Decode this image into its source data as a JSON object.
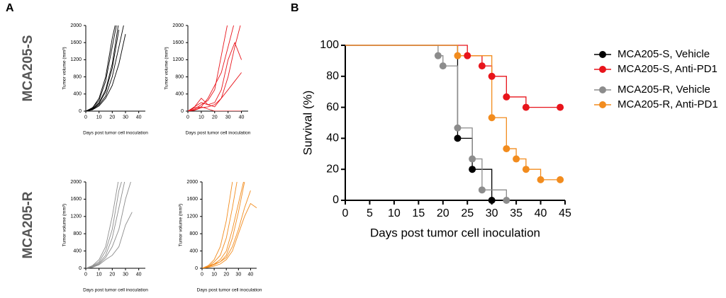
{
  "chart_data": [
    {
      "type": "line",
      "panel": "A",
      "group_label": "MCA205-S",
      "color": "#000000",
      "y_label": "Tumor volume (mm³)",
      "x_label": "Days post tumor cell inoculation",
      "x": [
        0,
        5,
        10,
        15,
        20,
        25,
        30,
        35,
        40,
        45
      ],
      "series": [
        {
          "values": [
            0,
            60,
            200,
            500,
            1100,
            2100,
            null,
            null,
            null,
            null
          ]
        },
        {
          "values": [
            0,
            40,
            150,
            350,
            800,
            1500,
            2200,
            null,
            null,
            null
          ]
        },
        {
          "values": [
            0,
            80,
            250,
            700,
            1500,
            2300,
            null,
            null,
            null,
            null
          ]
        },
        {
          "values": [
            0,
            30,
            120,
            300,
            600,
            1100,
            1800,
            null,
            null,
            null
          ]
        },
        {
          "values": [
            0,
            50,
            180,
            450,
            1000,
            1900,
            null,
            null,
            null,
            null
          ]
        },
        {
          "values": [
            0,
            70,
            300,
            800,
            1700,
            2400,
            null,
            null,
            null,
            null
          ]
        }
      ],
      "xlim": [
        0,
        45
      ],
      "xticks": [
        0,
        10,
        20,
        30,
        40
      ],
      "ylim": [
        0,
        2000
      ],
      "yticks": [
        0,
        400,
        800,
        1200,
        1600,
        2000
      ]
    },
    {
      "type": "line",
      "color": "#e8141b",
      "y_label": "Tumor volume (mm³)",
      "x_label": "Days post tumor cell inoculation",
      "x": [
        0,
        5,
        10,
        15,
        20,
        25,
        30,
        35,
        40,
        45
      ],
      "series": [
        {
          "values": [
            0,
            100,
            200,
            150,
            100,
            300,
            800,
            1500,
            2100,
            null
          ]
        },
        {
          "values": [
            0,
            50,
            150,
            250,
            500,
            1300,
            2100,
            null,
            null,
            null
          ]
        },
        {
          "values": [
            0,
            80,
            100,
            50,
            0,
            0,
            0,
            0,
            0,
            null
          ]
        },
        {
          "values": [
            0,
            100,
            300,
            150,
            200,
            500,
            1200,
            1600,
            1200,
            null
          ]
        },
        {
          "values": [
            0,
            30,
            100,
            300,
            600,
            900,
            1500,
            2100,
            null,
            null
          ]
        },
        {
          "values": [
            0,
            20,
            80,
            100,
            150,
            300,
            500,
            700,
            900,
            null
          ]
        }
      ],
      "xlim": [
        0,
        45
      ],
      "xticks": [
        0,
        10,
        20,
        30,
        40
      ],
      "ylim": [
        0,
        2000
      ],
      "yticks": [
        0,
        400,
        800,
        1200,
        1600,
        2000
      ]
    },
    {
      "type": "line",
      "group_label": "MCA205-R",
      "color": "#8c8c8c",
      "y_label": "Tumor volume (mm³)",
      "x_label": "Days post tumor cell inoculation",
      "x": [
        0,
        5,
        10,
        15,
        20,
        25,
        30,
        35,
        40,
        45
      ],
      "series": [
        {
          "values": [
            0,
            50,
            150,
            400,
            900,
            1800,
            2300,
            null,
            null,
            null
          ]
        },
        {
          "values": [
            0,
            40,
            120,
            300,
            700,
            1400,
            2100,
            null,
            null,
            null
          ]
        },
        {
          "values": [
            0,
            30,
            100,
            250,
            500,
            900,
            1600,
            2100,
            null,
            null
          ]
        },
        {
          "values": [
            0,
            60,
            200,
            500,
            1200,
            2100,
            null,
            null,
            null,
            null
          ]
        },
        {
          "values": [
            0,
            20,
            80,
            200,
            300,
            500,
            1000,
            1300,
            null,
            null
          ]
        }
      ],
      "xlim": [
        0,
        45
      ],
      "xticks": [
        0,
        10,
        20,
        30,
        40
      ],
      "ylim": [
        0,
        2000
      ],
      "yticks": [
        0,
        400,
        800,
        1200,
        1600,
        2000
      ]
    },
    {
      "type": "line",
      "color": "#f28c1e",
      "y_label": "Tumor volume (mm³)",
      "x_label": "Days post tumor cell inoculation",
      "x": [
        0,
        5,
        10,
        15,
        20,
        25,
        30,
        35,
        40,
        45
      ],
      "series": [
        {
          "values": [
            0,
            50,
            100,
            200,
            400,
            900,
            1500,
            2100,
            null,
            null
          ]
        },
        {
          "values": [
            0,
            30,
            100,
            150,
            250,
            500,
            900,
            1400,
            1800,
            null
          ]
        },
        {
          "values": [
            0,
            40,
            150,
            300,
            700,
            1400,
            2200,
            null,
            null,
            null
          ]
        },
        {
          "values": [
            0,
            20,
            50,
            100,
            200,
            400,
            800,
            1200,
            1500,
            1400
          ]
        },
        {
          "values": [
            0,
            60,
            200,
            500,
            1100,
            2000,
            null,
            null,
            null,
            null
          ]
        },
        {
          "values": [
            0,
            30,
            80,
            150,
            300,
            700,
            1300,
            2000,
            null,
            null
          ]
        }
      ],
      "xlim": [
        0,
        45
      ],
      "xticks": [
        0,
        10,
        20,
        30,
        40
      ],
      "ylim": [
        0,
        2000
      ],
      "yticks": [
        0,
        400,
        800,
        1200,
        1600,
        2000
      ]
    },
    {
      "type": "step",
      "panel": "B",
      "y_label": "Survival (%)",
      "x_label": "Days post tumor cell inoculation",
      "series": [
        {
          "name": "MCA205-S, Vehicle",
          "color": "#000000",
          "x": [
            0,
            23,
            26,
            30
          ],
          "values": [
            100,
            40,
            20,
            0
          ]
        },
        {
          "name": "MCA205-S, Anti-PD1",
          "color": "#e8141b",
          "x": [
            0,
            25,
            28,
            30,
            33,
            37,
            44
          ],
          "values": [
            100,
            93.3,
            86.7,
            80,
            66.7,
            60,
            60
          ]
        },
        {
          "name": "MCA205-R, Vehicle",
          "color": "#8c8c8c",
          "x": [
            0,
            19,
            20,
            23,
            26,
            28,
            33
          ],
          "values": [
            100,
            93.3,
            86.7,
            46.7,
            26.7,
            6.7,
            0
          ]
        },
        {
          "name": "MCA205-R, Anti-PD1",
          "color": "#f28c1e",
          "x": [
            0,
            23,
            30,
            33,
            35,
            37,
            40,
            44
          ],
          "values": [
            100,
            93.3,
            53.3,
            33.3,
            26.7,
            20,
            13.3,
            13.3
          ]
        }
      ],
      "xlim": [
        0,
        45
      ],
      "xticks": [
        0,
        5,
        10,
        15,
        20,
        25,
        30,
        35,
        40,
        45
      ],
      "ylim": [
        0,
        100
      ],
      "yticks": [
        0,
        20,
        40,
        60,
        80,
        100
      ]
    }
  ]
}
